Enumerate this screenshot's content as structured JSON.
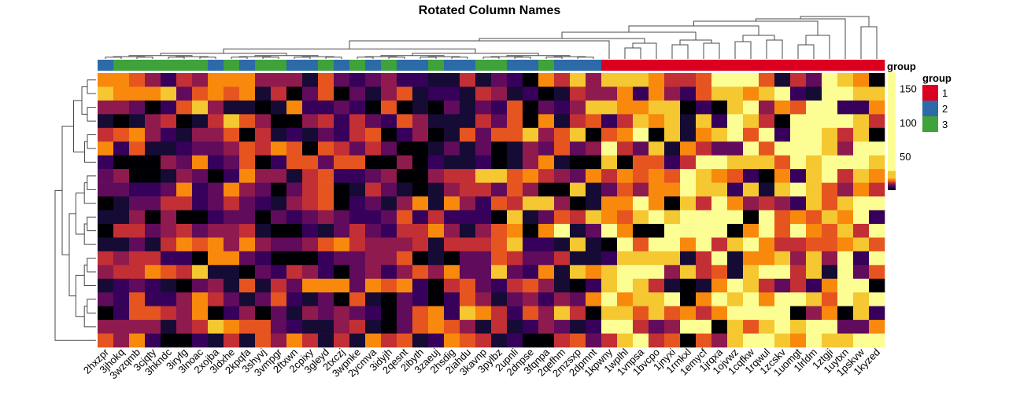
{
  "chart_data": {
    "type": "heatmap",
    "title": "Rotated Column Names",
    "columns": [
      "2hxzpr",
      "3jhokq",
      "3wzqmb",
      "3cjqty",
      "3hkndc",
      "3iryfg",
      "3lnoac",
      "2xojba",
      "3ldxhe",
      "2kpqfa",
      "3shyvj",
      "3vmpgr",
      "2ftxwn",
      "2cpixy",
      "3gleyd",
      "2txczj",
      "3wpnke",
      "2ycmva",
      "3idyjh",
      "2qesnt",
      "2ibyth",
      "3zaeuj",
      "2hsdig",
      "2iahdu",
      "3kavnp",
      "3pylbz",
      "2upnli",
      "2dnpse",
      "3fqnpa",
      "2qefhm",
      "2mzsxp",
      "2dpmnt",
      "1kpwny",
      "1wplhl",
      "1vnpsa",
      "1bvcpo",
      "1jnyxi",
      "1rmkxl",
      "1emycf",
      "1jrqxa",
      "1ojvwz",
      "1cqfkw",
      "1rqwul",
      "1zcskv",
      "1uomgt",
      "1lrldm",
      "1ztgji",
      "1uytxn",
      "1pskvw",
      "1kyzed"
    ],
    "column_groups": [
      "2",
      "3",
      "3",
      "3",
      "3",
      "3",
      "3",
      "2",
      "3",
      "2",
      "3",
      "3",
      "2",
      "2",
      "3",
      "2",
      "3",
      "2",
      "3",
      "2",
      "2",
      "3",
      "2",
      "2",
      "3",
      "3",
      "2",
      "2",
      "3",
      "2",
      "2",
      "2",
      "1",
      "1",
      "1",
      "1",
      "1",
      "1",
      "1",
      "1",
      "1",
      "1",
      "1",
      "1",
      "1",
      "1",
      "1",
      "1",
      "1",
      "1"
    ],
    "annotation_label": "group",
    "group_legend": {
      "title": "group",
      "entries": [
        {
          "label": "1",
          "color": "#DC0020"
        },
        {
          "label": "2",
          "color": "#2C6AA8"
        },
        {
          "label": "3",
          "color": "#3FA23A"
        }
      ]
    },
    "colorbar": {
      "range": [
        0,
        174
      ],
      "ticks": [
        "50",
        "100",
        "150"
      ],
      "tick_values": [
        50,
        100,
        150
      ]
    },
    "colormap": "inferno",
    "row_dendrogram": true,
    "column_dendrogram": true,
    "values": [
      [
        15,
        15,
        13,
        9,
        5,
        11,
        9,
        15,
        15,
        15,
        9,
        9,
        9,
        3,
        13,
        7,
        5,
        7,
        9,
        5,
        5,
        3,
        3,
        11,
        3,
        7,
        5,
        1,
        15,
        11,
        22,
        9,
        22,
        22,
        22,
        15,
        11,
        11,
        13,
        100,
        100,
        100,
        13,
        3,
        11,
        7,
        100,
        22,
        15,
        1
      ],
      [
        22,
        15,
        15,
        15,
        22,
        7,
        13,
        15,
        13,
        15,
        3,
        11,
        1,
        7,
        13,
        1,
        7,
        3,
        9,
        13,
        3,
        5,
        5,
        3,
        11,
        9,
        3,
        5,
        1,
        3,
        11,
        9,
        9,
        15,
        5,
        15,
        9,
        5,
        13,
        22,
        22,
        15,
        22,
        100,
        5,
        3,
        100,
        100,
        22,
        22
      ],
      [
        9,
        9,
        7,
        1,
        5,
        13,
        22,
        9,
        3,
        3,
        1,
        3,
        15,
        5,
        5,
        7,
        5,
        1,
        13,
        1,
        3,
        1,
        7,
        3,
        7,
        5,
        13,
        1,
        7,
        5,
        9,
        22,
        22,
        15,
        15,
        22,
        22,
        1,
        5,
        1,
        22,
        100,
        9,
        15,
        13,
        100,
        100,
        5,
        5,
        15
      ],
      [
        3,
        1,
        3,
        9,
        11,
        1,
        3,
        11,
        22,
        13,
        9,
        1,
        1,
        9,
        11,
        5,
        11,
        7,
        5,
        13,
        9,
        3,
        3,
        3,
        11,
        7,
        13,
        1,
        15,
        3,
        11,
        13,
        5,
        11,
        22,
        15,
        22,
        3,
        22,
        5,
        100,
        22,
        11,
        1,
        100,
        100,
        100,
        100,
        22,
        11
      ],
      [
        11,
        13,
        15,
        9,
        5,
        3,
        9,
        9,
        13,
        1,
        11,
        3,
        5,
        3,
        7,
        5,
        11,
        13,
        1,
        5,
        9,
        1,
        3,
        13,
        7,
        13,
        13,
        22,
        9,
        13,
        22,
        1,
        13,
        15,
        100,
        1,
        22,
        3,
        15,
        22,
        100,
        13,
        100,
        5,
        100,
        100,
        22,
        11,
        22,
        1
      ],
      [
        15,
        5,
        13,
        3,
        3,
        5,
        7,
        7,
        9,
        13,
        11,
        15,
        13,
        1,
        13,
        11,
        7,
        11,
        7,
        1,
        1,
        3,
        7,
        3,
        7,
        1,
        3,
        9,
        7,
        13,
        7,
        9,
        100,
        11,
        7,
        22,
        3,
        15,
        11,
        7,
        7,
        100,
        13,
        100,
        100,
        100,
        22,
        9,
        100,
        100
      ],
      [
        5,
        1,
        1,
        1,
        9,
        7,
        15,
        5,
        7,
        13,
        1,
        5,
        13,
        13,
        7,
        13,
        13,
        1,
        1,
        9,
        1,
        5,
        3,
        3,
        5,
        1,
        3,
        9,
        15,
        3,
        1,
        1,
        22,
        1,
        13,
        13,
        5,
        11,
        100,
        100,
        22,
        22,
        22,
        13,
        100,
        22,
        100,
        100,
        100,
        22
      ],
      [
        7,
        9,
        1,
        1,
        3,
        9,
        7,
        1,
        5,
        15,
        9,
        9,
        3,
        11,
        13,
        5,
        5,
        7,
        9,
        1,
        1,
        9,
        11,
        11,
        22,
        22,
        13,
        15,
        11,
        9,
        7,
        15,
        11,
        15,
        13,
        15,
        13,
        100,
        22,
        15,
        13,
        5,
        1,
        15,
        5,
        22,
        100,
        11,
        22,
        15
      ],
      [
        7,
        7,
        5,
        5,
        7,
        15,
        5,
        7,
        15,
        9,
        7,
        1,
        7,
        11,
        13,
        1,
        3,
        11,
        7,
        3,
        1,
        3,
        9,
        11,
        11,
        7,
        13,
        9,
        1,
        1,
        22,
        3,
        7,
        13,
        9,
        15,
        15,
        100,
        22,
        22,
        5,
        22,
        3,
        22,
        100,
        22,
        13,
        9,
        15,
        11
      ],
      [
        1,
        3,
        7,
        7,
        11,
        11,
        5,
        7,
        11,
        7,
        5,
        3,
        9,
        11,
        13,
        1,
        5,
        7,
        3,
        9,
        15,
        3,
        15,
        9,
        5,
        13,
        11,
        22,
        22,
        9,
        1,
        3,
        15,
        15,
        100,
        15,
        1,
        22,
        11,
        100,
        15,
        9,
        11,
        9,
        5,
        22,
        13,
        22,
        100,
        100
      ],
      [
        3,
        3,
        9,
        1,
        9,
        1,
        1,
        5,
        7,
        7,
        1,
        7,
        5,
        7,
        9,
        7,
        5,
        5,
        7,
        13,
        5,
        11,
        5,
        5,
        5,
        1,
        22,
        3,
        7,
        13,
        11,
        22,
        15,
        13,
        22,
        100,
        22,
        100,
        100,
        100,
        100,
        1,
        100,
        13,
        15,
        13,
        22,
        15,
        100,
        5
      ],
      [
        1,
        11,
        11,
        7,
        9,
        11,
        7,
        9,
        9,
        11,
        3,
        1,
        1,
        5,
        3,
        7,
        11,
        7,
        5,
        11,
        11,
        15,
        9,
        3,
        9,
        13,
        15,
        1,
        15,
        100,
        3,
        7,
        100,
        15,
        1,
        1,
        100,
        100,
        100,
        100,
        1,
        15,
        100,
        13,
        100,
        15,
        13,
        22,
        11,
        100
      ],
      [
        3,
        3,
        7,
        3,
        11,
        15,
        13,
        15,
        9,
        15,
        9,
        7,
        7,
        9,
        13,
        15,
        11,
        9,
        9,
        9,
        11,
        3,
        11,
        11,
        11,
        13,
        22,
        5,
        5,
        3,
        22,
        3,
        1,
        100,
        13,
        100,
        100,
        15,
        100,
        11,
        22,
        100,
        15,
        11,
        11,
        13,
        13,
        15,
        22,
        13
      ],
      [
        11,
        9,
        11,
        11,
        5,
        5,
        1,
        15,
        15,
        7,
        5,
        1,
        1,
        1,
        5,
        7,
        7,
        9,
        9,
        13,
        1,
        3,
        1,
        7,
        7,
        13,
        11,
        7,
        7,
        11,
        3,
        3,
        5,
        22,
        22,
        22,
        22,
        3,
        11,
        100,
        3,
        15,
        15,
        22,
        9,
        22,
        9,
        100,
        5,
        100
      ],
      [
        9,
        11,
        11,
        15,
        13,
        11,
        22,
        3,
        3,
        1,
        7,
        5,
        11,
        9,
        5,
        1,
        7,
        9,
        5,
        9,
        13,
        9,
        15,
        7,
        7,
        22,
        7,
        5,
        15,
        3,
        22,
        15,
        22,
        100,
        100,
        100,
        9,
        22,
        11,
        13,
        3,
        22,
        100,
        100,
        11,
        22,
        3,
        100,
        7,
        13
      ],
      [
        3,
        5,
        7,
        5,
        3,
        1,
        7,
        9,
        3,
        13,
        3,
        11,
        7,
        15,
        15,
        15,
        7,
        15,
        13,
        15,
        5,
        1,
        11,
        13,
        7,
        5,
        11,
        13,
        9,
        3,
        1,
        5,
        22,
        100,
        22,
        11,
        3,
        1,
        3,
        15,
        100,
        22,
        11,
        7,
        11,
        5,
        15,
        100,
        100,
        1
      ],
      [
        7,
        5,
        13,
        5,
        5,
        9,
        15,
        11,
        7,
        3,
        7,
        13,
        5,
        3,
        7,
        1,
        13,
        3,
        1,
        7,
        5,
        1,
        5,
        13,
        9,
        3,
        7,
        9,
        5,
        9,
        7,
        15,
        100,
        15,
        22,
        22,
        100,
        1,
        15,
        100,
        22,
        100,
        15,
        100,
        100,
        22,
        13,
        100,
        22,
        100
      ],
      [
        1,
        5,
        13,
        13,
        11,
        9,
        15,
        1,
        5,
        9,
        1,
        7,
        3,
        9,
        7,
        9,
        7,
        5,
        1,
        7,
        13,
        15,
        5,
        22,
        15,
        11,
        5,
        13,
        9,
        22,
        11,
        1,
        22,
        22,
        13,
        22,
        13,
        15,
        11,
        15,
        100,
        100,
        100,
        100,
        1,
        9,
        15,
        1,
        22,
        5
      ],
      [
        9,
        9,
        9,
        9,
        3,
        9,
        11,
        22,
        15,
        13,
        13,
        7,
        5,
        3,
        3,
        9,
        11,
        3,
        1,
        7,
        13,
        15,
        13,
        9,
        3,
        11,
        3,
        5,
        9,
        7,
        3,
        5,
        100,
        100,
        11,
        7,
        9,
        100,
        100,
        1,
        22,
        13,
        22,
        100,
        22,
        100,
        100,
        7,
        7,
        15
      ],
      [
        13,
        9,
        15,
        5,
        1,
        1,
        5,
        3,
        11,
        3,
        13,
        9,
        15,
        11,
        3,
        11,
        3,
        15,
        11,
        13,
        3,
        5,
        15,
        13,
        11,
        3,
        5,
        1,
        1,
        11,
        13,
        7,
        11,
        22,
        100,
        11,
        13,
        1,
        13,
        9,
        22,
        100,
        100,
        22,
        15,
        100,
        22,
        22,
        100,
        100
      ]
    ]
  }
}
